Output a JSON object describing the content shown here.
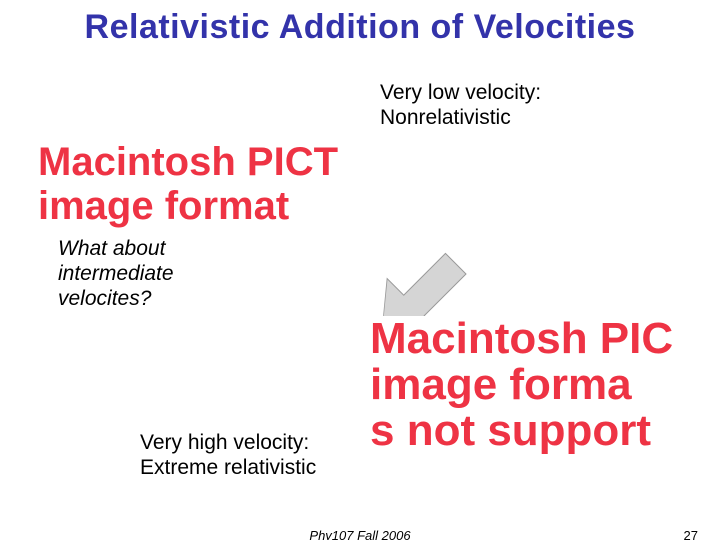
{
  "title": "Relativistic Addition of Velocities",
  "labels": {
    "low_velocity_l1": "Very low velocity:",
    "low_velocity_l2": "Nonrelativistic",
    "what_about_l1": "What about",
    "what_about_l2": "intermediate",
    "what_about_l3": "velocites?",
    "high_velocity_l1": "Very high velocity:",
    "high_velocity_l2": "Extreme relativistic"
  },
  "placeholder": {
    "line1_a": "Macintosh PICT",
    "line2_a": "image format",
    "line1_b": "Macintosh PIC",
    "line2_b": "image forma",
    "line3_b": "s not support"
  },
  "footer": {
    "center": "Phy107 Fall 2006",
    "page": "27"
  },
  "colors": {
    "title": "#3333aa",
    "text": "#000000",
    "placeholder_text": "#ee3344",
    "arrow_fill": "#d5d5d5",
    "arrow_border": "#999999",
    "background": "#ffffff"
  },
  "icons": {
    "arrow": "thick-arrow-down-right"
  }
}
